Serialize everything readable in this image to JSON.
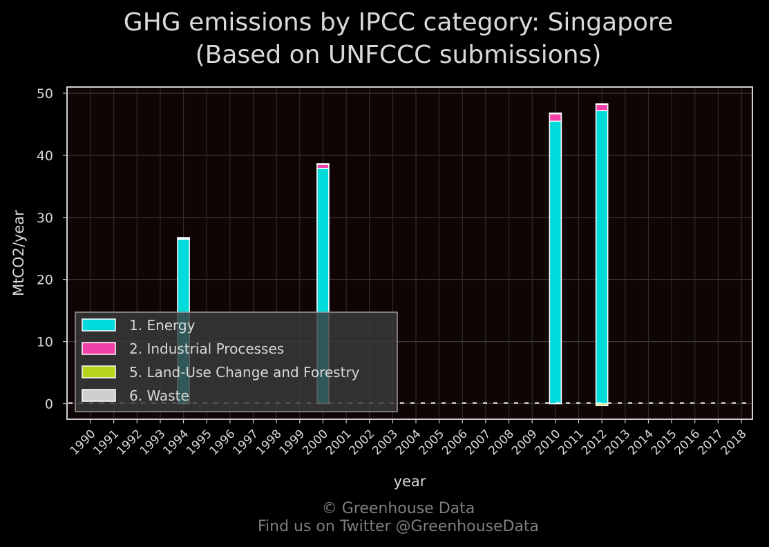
{
  "chart_data": {
    "type": "bar",
    "stacked": true,
    "title_line1": "GHG emissions by IPCC category: Singapore",
    "title_line2": "(Based on UNFCCC submissions)",
    "xlabel": "year",
    "ylabel": "MtCO2/year",
    "ylim": [
      -2.5,
      51
    ],
    "yticks": [
      0,
      10,
      20,
      30,
      40,
      50
    ],
    "grid": true,
    "legend_position": "lower-left",
    "categories": [
      "1990",
      "1991",
      "1992",
      "1993",
      "1994",
      "1995",
      "1996",
      "1997",
      "1998",
      "1999",
      "2000",
      "2001",
      "2002",
      "2003",
      "2004",
      "2005",
      "2006",
      "2007",
      "2008",
      "2009",
      "2010",
      "2011",
      "2012",
      "2013",
      "2014",
      "2015",
      "2016",
      "2017",
      "2018"
    ],
    "series": [
      {
        "name": "1. Energy",
        "color": "#00dadb",
        "values": [
          0,
          0,
          0,
          0,
          26.5,
          0,
          0,
          0,
          0,
          0,
          37.9,
          0,
          0,
          0,
          0,
          0,
          0,
          0,
          0,
          0,
          45.5,
          0,
          47.2,
          0,
          0,
          0,
          0,
          0,
          0
        ]
      },
      {
        "name": "2. Industrial Processes",
        "color": "#f33fa8",
        "values": [
          0,
          0,
          0,
          0,
          0.2,
          0,
          0,
          0,
          0,
          0,
          0.7,
          0,
          0,
          0,
          0,
          0,
          0,
          0,
          0,
          0,
          1.2,
          0,
          1.0,
          0,
          0,
          0,
          0,
          0,
          0
        ]
      },
      {
        "name": "5. Land-Use Change and Forestry",
        "color": "#b5d41a",
        "values": [
          0,
          0,
          0,
          0,
          0,
          0,
          0,
          0,
          0,
          0,
          0,
          0,
          0,
          0,
          0,
          0,
          0,
          0,
          0,
          0,
          0,
          0,
          -0.3,
          0,
          0,
          0,
          0,
          0,
          0
        ]
      },
      {
        "name": "6. Waste",
        "color": "#cfcfcf",
        "values": [
          0,
          0,
          0,
          0,
          0.05,
          0,
          0,
          0,
          0,
          0,
          0.05,
          0,
          0,
          0,
          0,
          0,
          0,
          0,
          0,
          0,
          0.1,
          0,
          0.1,
          0,
          0,
          0,
          0,
          0,
          0
        ]
      }
    ]
  },
  "footer": {
    "copyright": "© Greenhouse Data",
    "twitter": "Find us on Twitter @GreenhouseData"
  }
}
